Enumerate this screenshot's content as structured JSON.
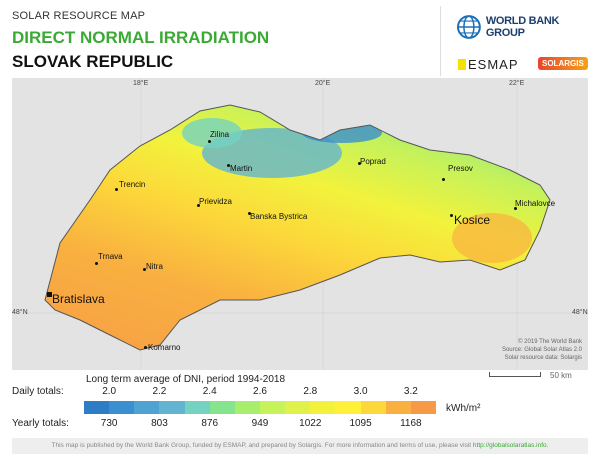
{
  "header": {
    "supertitle": "SOLAR RESOURCE MAP",
    "title": "DIRECT NORMAL IRRADIATION",
    "country": "SLOVAK REPUBLIC"
  },
  "logos": {
    "wbg": "WORLD BANK GROUP",
    "esmap": "ESMAP",
    "solargis": "SOLARGIS"
  },
  "graticule": [
    "18°E",
    "20°E",
    "22°E",
    "48°N",
    "48°N"
  ],
  "cities": [
    {
      "name": "Zilina",
      "size": "small"
    },
    {
      "name": "Martin",
      "size": "small"
    },
    {
      "name": "Poprad",
      "size": "small"
    },
    {
      "name": "Presov",
      "size": "small"
    },
    {
      "name": "Trencin",
      "size": "small"
    },
    {
      "name": "Prievidza",
      "size": "small"
    },
    {
      "name": "Banska Bystrica",
      "size": "small"
    },
    {
      "name": "Michalovce",
      "size": "small"
    },
    {
      "name": "Kosice",
      "size": "big"
    },
    {
      "name": "Trnava",
      "size": "small"
    },
    {
      "name": "Nitra",
      "size": "small"
    },
    {
      "name": "Bratislava",
      "size": "big"
    },
    {
      "name": "Komarno",
      "size": "small"
    }
  ],
  "credits": [
    "© 2019 The World Bank",
    "Source: Global Solar Atlas 2.0",
    "Solar resource data: Solargis"
  ],
  "scale": "50 km",
  "legend": {
    "title": "Long term average of DNI, period 1994-2018",
    "daily_label": "Daily totals:",
    "yearly_label": "Yearly totals:",
    "daily": [
      "2.0",
      "2.2",
      "2.4",
      "2.6",
      "2.8",
      "3.0",
      "3.2"
    ],
    "yearly": [
      "730",
      "803",
      "876",
      "949",
      "1022",
      "1095",
      "1168"
    ],
    "unit": "kWh/m²",
    "colors": [
      "#2e7cc4",
      "#3a8fd0",
      "#4ea3d0",
      "#62b4d0",
      "#74d2c0",
      "#86e48e",
      "#a6ee6c",
      "#c6f25a",
      "#dff14a",
      "#f2f23c",
      "#fff03a",
      "#fcd83a",
      "#f9b040",
      "#f69a48"
    ]
  },
  "footer": {
    "text": "This map is published by the World Bank Group, funded by ESMAP, and prepared by Solargis. For more information and terms of use, please visit ",
    "link": "http://globalsolaratlas.info",
    "end": "."
  }
}
